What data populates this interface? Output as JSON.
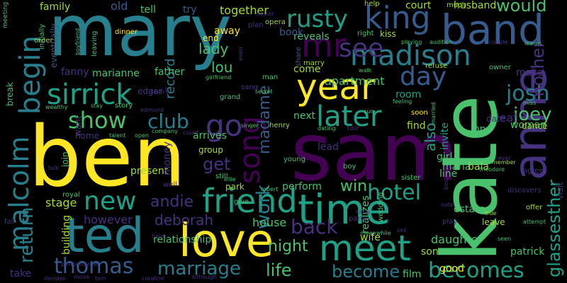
{
  "title": "",
  "background": "#000000",
  "palette": {
    "purple": "#440154",
    "indigo": "#46327e",
    "blue": "#365c8d",
    "teal": "#277f8e",
    "green": "#1fa187",
    "lime": "#4ac16d",
    "yellowgreen": "#a0da39",
    "yellow": "#fde725"
  },
  "words": [
    {
      "text": "mary",
      "color": "#277f8e"
    },
    {
      "text": "ben",
      "color": "#fde725"
    },
    {
      "text": "sam",
      "color": "#440154"
    },
    {
      "text": "kate",
      "color": "#4ac16d"
    },
    {
      "text": "ted",
      "color": "#277f8e"
    },
    {
      "text": "love",
      "color": "#fde725"
    },
    {
      "text": "time",
      "color": "#1fa187"
    },
    {
      "text": "band",
      "color": "#365c8d"
    },
    {
      "text": "anne",
      "color": "#46327e"
    },
    {
      "text": "year",
      "color": "#fde725"
    },
    {
      "text": "friend",
      "color": "#1fa187"
    },
    {
      "text": "meet",
      "color": "#1fa187"
    },
    {
      "text": "mr",
      "color": "#440154"
    },
    {
      "text": "king",
      "color": "#365c8d"
    },
    {
      "text": "madison",
      "color": "#277f8e"
    },
    {
      "text": "see",
      "color": "#46327e"
    },
    {
      "text": "sirrick",
      "color": "#1fa187"
    },
    {
      "text": "song",
      "color": "#440154"
    },
    {
      "text": "go",
      "color": "#46327e"
    },
    {
      "text": "later",
      "color": "#1fa187"
    },
    {
      "text": "begin",
      "color": "#277f8e"
    },
    {
      "text": "malcolm",
      "color": "#277f8e"
    },
    {
      "text": "new",
      "color": "#1fa187"
    },
    {
      "text": "show",
      "color": "#4ac16d"
    },
    {
      "text": "day",
      "color": "#365c8d"
    },
    {
      "text": "rusty",
      "color": "#1fa187"
    },
    {
      "text": "josh",
      "color": "#277f8e"
    },
    {
      "text": "club",
      "color": "#277f8e"
    },
    {
      "text": "thomas",
      "color": "#365c8d"
    },
    {
      "text": "marriage",
      "color": "#277f8e"
    },
    {
      "text": "becomes",
      "color": "#1fa187"
    },
    {
      "text": "glassesther",
      "color": "#1fa187"
    },
    {
      "text": "mother",
      "color": "#46327e"
    },
    {
      "text": "hotel",
      "color": "#1fa187"
    },
    {
      "text": "back",
      "color": "#46327e"
    },
    {
      "text": "work",
      "color": "#277f8e"
    },
    {
      "text": "joey",
      "color": "#4ac16d"
    },
    {
      "text": "would",
      "color": "#4ac16d"
    },
    {
      "text": "life",
      "color": "#4ac16d"
    },
    {
      "text": "return",
      "color": "#277f8e"
    },
    {
      "text": "become",
      "color": "#277f8e"
    },
    {
      "text": "get",
      "color": "#46327e"
    },
    {
      "text": "win",
      "color": "#4ac16d"
    },
    {
      "text": "night",
      "color": "#4ac16d"
    },
    {
      "text": "andie",
      "color": "#46327e"
    },
    {
      "text": "lou",
      "color": "#4ac16d"
    },
    {
      "text": "lady",
      "color": "#4ac16d"
    },
    {
      "text": "madame",
      "color": "#365c8d"
    },
    {
      "text": "also",
      "color": "#1fa187"
    },
    {
      "text": "record",
      "color": "#277f8e"
    },
    {
      "text": "deborah",
      "color": "#46327e"
    },
    {
      "text": "house",
      "color": "#4ac16d"
    },
    {
      "text": "apartment",
      "color": "#4ac16d"
    },
    {
      "text": "woman",
      "color": "#4ac16d"
    },
    {
      "text": "patrick",
      "color": "#4ac16d"
    },
    {
      "text": "daughter",
      "color": "#4ac16d"
    },
    {
      "text": "together",
      "color": "#a0da39"
    },
    {
      "text": "family",
      "color": "#a0da39"
    },
    {
      "text": "old",
      "color": "#365c8d"
    },
    {
      "text": "tell",
      "color": "#4ac16d"
    },
    {
      "text": "try",
      "color": "#365c8d"
    },
    {
      "text": "court",
      "color": "#a0da39"
    },
    {
      "text": "husband",
      "color": "#a0da39"
    },
    {
      "text": "away",
      "color": "#fde725"
    },
    {
      "text": "end",
      "color": "#fde725"
    },
    {
      "text": "reveals",
      "color": "#4ac16d"
    },
    {
      "text": "book",
      "color": "#365c8d"
    },
    {
      "text": "kiss",
      "color": "#a0da39"
    },
    {
      "text": "come",
      "color": "#a0da39"
    },
    {
      "text": "room",
      "color": "#1fa187"
    },
    {
      "text": "make",
      "color": "#46327e"
    },
    {
      "text": "dance",
      "color": "#a0da39"
    },
    {
      "text": "find",
      "color": "#a0da39"
    },
    {
      "text": "invite",
      "color": "#1fa187"
    },
    {
      "text": "leaf",
      "color": "#46327e"
    },
    {
      "text": "date",
      "color": "#46327e"
    },
    {
      "text": "one",
      "color": "#4ac16d"
    },
    {
      "text": "girl",
      "color": "#4ac16d"
    },
    {
      "text": "line",
      "color": "#4ac16d"
    },
    {
      "text": "maria",
      "color": "#4ac16d"
    },
    {
      "text": "bala",
      "color": "#a0da39"
    },
    {
      "text": "visit",
      "color": "#46327e"
    },
    {
      "text": "stage",
      "color": "#a0da39"
    },
    {
      "text": "however",
      "color": "#46327e"
    },
    {
      "text": "relationship",
      "color": "#4ac16d"
    },
    {
      "text": "building",
      "color": "#a0da39"
    },
    {
      "text": "take",
      "color": "#46327e"
    },
    {
      "text": "present",
      "color": "#a0da39"
    },
    {
      "text": "money",
      "color": "#46327e"
    },
    {
      "text": "join",
      "color": "#4ac16d"
    },
    {
      "text": "want",
      "color": "#46327e"
    },
    {
      "text": "home",
      "color": "#46327e"
    },
    {
      "text": "father",
      "color": "#4ac16d"
    },
    {
      "text": "marianne",
      "color": "#4ac16d"
    },
    {
      "text": "fanny",
      "color": "#46327e"
    },
    {
      "text": "edgar",
      "color": "#46327e"
    },
    {
      "text": "story",
      "color": "#4ac16d"
    },
    {
      "text": "arrives",
      "color": "#4ac16d"
    },
    {
      "text": "group",
      "color": "#a0da39"
    },
    {
      "text": "park",
      "color": "#a0da39"
    },
    {
      "text": "perform",
      "color": "#4ac16d"
    },
    {
      "text": "lead",
      "color": "#46327e"
    },
    {
      "text": "realizes",
      "color": "#4ac16d"
    },
    {
      "text": "wife",
      "color": "#a0da39"
    },
    {
      "text": "estate",
      "color": "#4ac16d"
    },
    {
      "text": "leave",
      "color": "#a0da39"
    },
    {
      "text": "film",
      "color": "#4ac16d"
    },
    {
      "text": "son",
      "color": "#a0da39"
    },
    {
      "text": "good",
      "color": "#fde725"
    },
    {
      "text": "next",
      "color": "#4ac16d"
    },
    {
      "text": "marry",
      "color": "#a0da39"
    },
    {
      "text": "break",
      "color": "#4ac16d"
    },
    {
      "text": "dinner",
      "color": "#fde725"
    },
    {
      "text": "eventually",
      "color": "#365c8d"
    },
    {
      "text": "initially",
      "color": "#4ac16d"
    },
    {
      "text": "order",
      "color": "#a0da39"
    },
    {
      "text": "meeting",
      "color": "#4ac16d"
    },
    {
      "text": "leaving",
      "color": "#4ac16d"
    },
    {
      "text": "boyfriend",
      "color": "#4ac16d"
    },
    {
      "text": "plan",
      "color": "#46327e"
    },
    {
      "text": "help",
      "color": "#a0da39"
    },
    {
      "text": "much",
      "color": "#a0da39"
    },
    {
      "text": "opera",
      "color": "#a0da39"
    },
    {
      "text": "share",
      "color": "#365c8d"
    },
    {
      "text": "right",
      "color": "#4ac16d"
    },
    {
      "text": "playing",
      "color": "#4ac16d"
    },
    {
      "text": "audition",
      "color": "#4ac16d"
    },
    {
      "text": "couple",
      "color": "#46327e"
    },
    {
      "text": "learns",
      "color": "#4ac16d"
    },
    {
      "text": "refuse",
      "color": "#a0da39"
    },
    {
      "text": "owner",
      "color": "#4ac16d"
    },
    {
      "text": "walk",
      "color": "#4ac16d"
    },
    {
      "text": "girlfriend",
      "color": "#4ac16d"
    },
    {
      "text": "man",
      "color": "#4ac16d"
    },
    {
      "text": "sang",
      "color": "#46327e"
    },
    {
      "text": "secret",
      "color": "#4ac16d"
    },
    {
      "text": "grand",
      "color": "#4ac16d"
    },
    {
      "text": "keep",
      "color": "#46327e"
    },
    {
      "text": "stay",
      "color": "#4ac16d"
    },
    {
      "text": "wealthy",
      "color": "#4ac16d"
    },
    {
      "text": "edmund",
      "color": "#46327e"
    },
    {
      "text": "singer",
      "color": "#4ac16d"
    },
    {
      "text": "henry",
      "color": "#a0da39"
    },
    {
      "text": "dating",
      "color": "#4ac16d"
    },
    {
      "text": "fair",
      "color": "#46327e"
    },
    {
      "text": "run",
      "color": "#4ac16d"
    },
    {
      "text": "soon",
      "color": "#fde725"
    },
    {
      "text": "feeling",
      "color": "#4ac16d"
    },
    {
      "text": "miss",
      "color": "#4ac16d"
    },
    {
      "text": "married",
      "color": "#4ac16d"
    },
    {
      "text": "talent",
      "color": "#4ac16d"
    },
    {
      "text": "open",
      "color": "#4ac16d"
    },
    {
      "text": "company",
      "color": "#4ac16d"
    },
    {
      "text": "could",
      "color": "#46327e"
    },
    {
      "text": "young",
      "color": "#4ac16d"
    },
    {
      "text": "ellie",
      "color": "#4ac16d"
    },
    {
      "text": "still",
      "color": "#4ac16d"
    },
    {
      "text": "boy",
      "color": "#4ac16d"
    },
    {
      "text": "theodore",
      "color": "#4ac16d"
    },
    {
      "text": "never",
      "color": "#46327e"
    },
    {
      "text": "member",
      "color": "#a0da39"
    },
    {
      "text": "agrees",
      "color": "#46327e"
    },
    {
      "text": "sister",
      "color": "#4ac16d"
    },
    {
      "text": "talk",
      "color": "#46327e"
    },
    {
      "text": "royal",
      "color": "#4ac16d"
    },
    {
      "text": "well",
      "color": "#46327e"
    },
    {
      "text": "robert",
      "color": "#4ac16d"
    },
    {
      "text": "give",
      "color": "#4ac16d"
    },
    {
      "text": "kang",
      "color": "#46327e"
    },
    {
      "text": "party",
      "color": "#46327e"
    },
    {
      "text": "wedding",
      "color": "#4ac16d"
    },
    {
      "text": "discovers",
      "color": "#46327e"
    },
    {
      "text": "note",
      "color": "#46327e"
    },
    {
      "text": "true",
      "color": "#a0da39"
    },
    {
      "text": "attempt",
      "color": "#4ac16d"
    },
    {
      "text": "offer",
      "color": "#a0da39"
    },
    {
      "text": "play",
      "color": "#46327e"
    },
    {
      "text": "bos",
      "color": "#46327e"
    },
    {
      "text": "seen",
      "color": "#4ac16d"
    },
    {
      "text": "meanwhile",
      "color": "#4ac16d"
    },
    {
      "text": "sex",
      "color": "#46327e"
    },
    {
      "text": "fall",
      "color": "#46327e"
    },
    {
      "text": "hyun",
      "color": "#46327e"
    },
    {
      "text": "performance",
      "color": "#46327e"
    },
    {
      "text": "decides",
      "color": "#46327e"
    },
    {
      "text": "move",
      "color": "#46327e"
    },
    {
      "text": "tom",
      "color": "#46327e"
    },
    {
      "text": "coraline",
      "color": "#46327e"
    },
    {
      "text": "although",
      "color": "#46327e"
    },
    {
      "text": "say",
      "color": "#46327e"
    },
    {
      "text": "even",
      "color": "#46327e"
    },
    {
      "text": "better",
      "color": "#46327e"
    },
    {
      "text": "ex",
      "color": "#46327e"
    }
  ]
}
